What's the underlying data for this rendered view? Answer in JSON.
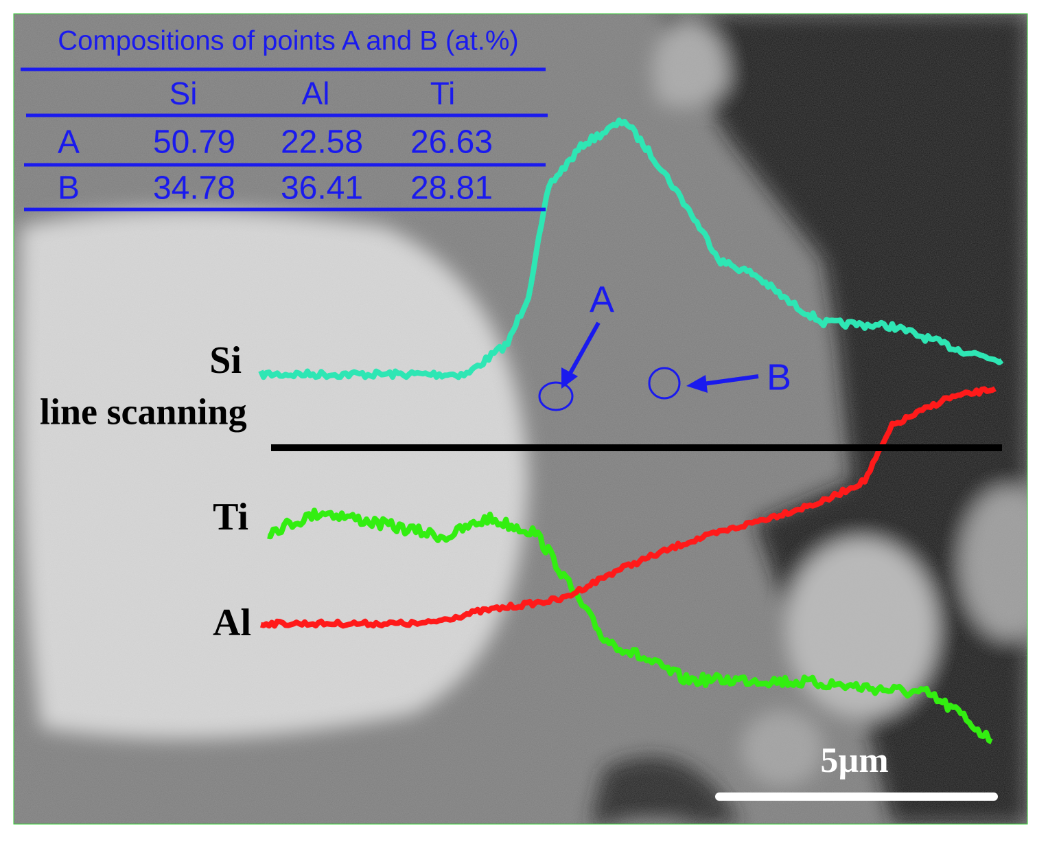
{
  "table": {
    "title": "Compositions of points A and B (at.%)",
    "header": [
      "Si",
      "Al",
      "Ti"
    ],
    "rows": [
      [
        "A",
        50.79,
        22.58,
        26.63
      ],
      [
        "B",
        34.78,
        36.41,
        28.81
      ]
    ]
  },
  "points": [
    "A",
    "B"
  ],
  "line_scan": {
    "profiles": [
      "Si",
      "Ti",
      "Al"
    ],
    "label": "line scanning"
  },
  "scale_bar": "5µm"
}
